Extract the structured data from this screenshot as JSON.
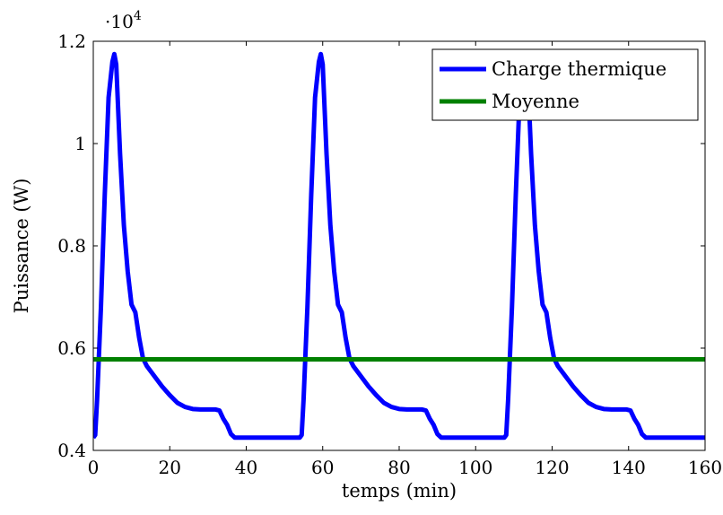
{
  "chart_data": {
    "type": "line",
    "ylabel": "Puissance (W)",
    "xlabel": "temps (min)",
    "y_multiplier": "·10",
    "y_multiplier_exp": "4",
    "xlim": [
      0,
      160
    ],
    "ylim": [
      0.4,
      1.2
    ],
    "xticks": [
      0,
      20,
      40,
      60,
      80,
      100,
      120,
      140,
      160
    ],
    "yticks": [
      0.4,
      0.6,
      0.8,
      1,
      1.2
    ],
    "xtick_labels": [
      "0",
      "20",
      "40",
      "60",
      "80",
      "100",
      "120",
      "140",
      "160"
    ],
    "ytick_labels": [
      "0.4",
      "0.6",
      "0.8",
      "1",
      "1.2"
    ],
    "grid": false,
    "legend_position": "top-right",
    "series": [
      {
        "name": "Charge thermique",
        "color": "#0000ff",
        "x": [
          0,
          0.5,
          1,
          2,
          3,
          4,
          5,
          5.5,
          6,
          7,
          8,
          9,
          10,
          11,
          12,
          13,
          14,
          16,
          18,
          20,
          22,
          24,
          26,
          28,
          30,
          32,
          33,
          34,
          35,
          36,
          37,
          40,
          45,
          50,
          54,
          54.5,
          55,
          56,
          57,
          58,
          59,
          59.5,
          60,
          61,
          62,
          63,
          64,
          65,
          66,
          67,
          68,
          70,
          72,
          74,
          76,
          78,
          80,
          82,
          84,
          86,
          87,
          88,
          89,
          90,
          91,
          94,
          99,
          104,
          107.5,
          108,
          108.5,
          109.5,
          110.5,
          111.5,
          112.5,
          113,
          113.5,
          114.5,
          115.5,
          116.5,
          117.5,
          118.5,
          119.5,
          120.5,
          121.5,
          123.5,
          125.5,
          127.5,
          129.5,
          131.5,
          133.5,
          135.5,
          137.5,
          139.5,
          140.5,
          141.5,
          142.5,
          143.5,
          144.5,
          147.5,
          152.5,
          157.5,
          160
        ],
        "y": [
          0.425,
          0.43,
          0.5,
          0.68,
          0.9,
          1.09,
          1.16,
          1.175,
          1.155,
          0.98,
          0.84,
          0.75,
          0.685,
          0.67,
          0.62,
          0.58,
          0.565,
          0.545,
          0.525,
          0.508,
          0.493,
          0.485,
          0.481,
          0.48,
          0.48,
          0.48,
          0.478,
          0.462,
          0.45,
          0.432,
          0.425,
          0.425,
          0.425,
          0.425,
          0.425,
          0.43,
          0.5,
          0.68,
          0.9,
          1.09,
          1.16,
          1.175,
          1.155,
          0.98,
          0.84,
          0.75,
          0.685,
          0.67,
          0.62,
          0.58,
          0.565,
          0.545,
          0.525,
          0.508,
          0.493,
          0.485,
          0.481,
          0.48,
          0.48,
          0.48,
          0.478,
          0.462,
          0.45,
          0.432,
          0.425,
          0.425,
          0.425,
          0.425,
          0.425,
          0.43,
          0.5,
          0.68,
          0.9,
          1.09,
          1.16,
          1.175,
          1.155,
          0.98,
          0.84,
          0.75,
          0.685,
          0.67,
          0.62,
          0.58,
          0.565,
          0.545,
          0.525,
          0.508,
          0.493,
          0.485,
          0.481,
          0.48,
          0.48,
          0.48,
          0.478,
          0.462,
          0.45,
          0.432,
          0.425,
          0.425,
          0.425,
          0.425,
          0.425
        ]
      },
      {
        "name": "Moyenne",
        "color": "#008000",
        "x": [
          0,
          160
        ],
        "y": [
          0.578,
          0.578
        ]
      }
    ]
  }
}
